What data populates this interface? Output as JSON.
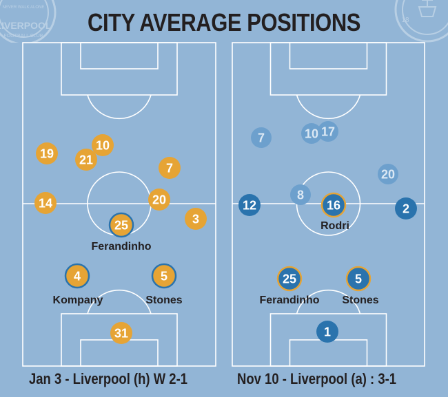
{
  "title": "CITY AVERAGE POSITIONS",
  "crests": {
    "left": {
      "icon": "liverpool-crest-icon",
      "text": "LIVERPOOL",
      "subtext": "FOOTBALL CLUB",
      "motto": "NEVER WALK ALONE"
    },
    "right": {
      "icon": "manchester-city-crest-icon",
      "text": "18"
    }
  },
  "colors": {
    "background": "#92b5d6",
    "pitch_line": "#ffffff",
    "orange": "#e6a435",
    "blue_dark": "#2a73ad",
    "blue_light": "#6da0cd",
    "text": "#231f20"
  },
  "pitches": [
    {
      "caption": "Jan 3 - Liverpool (h) W 2-1",
      "players": [
        {
          "number": "19",
          "style": "orange",
          "label": ""
        },
        {
          "number": "10",
          "style": "orange",
          "label": ""
        },
        {
          "number": "21",
          "style": "orange",
          "label": ""
        },
        {
          "number": "7",
          "style": "orange",
          "label": ""
        },
        {
          "number": "14",
          "style": "orange",
          "label": ""
        },
        {
          "number": "20",
          "style": "orange",
          "label": ""
        },
        {
          "number": "3",
          "style": "orange",
          "label": ""
        },
        {
          "number": "25",
          "style": "orange-ring",
          "label": "Ferandinho"
        },
        {
          "number": "4",
          "style": "orange-ring",
          "label": "Kompany"
        },
        {
          "number": "5",
          "style": "orange-ring",
          "label": "Stones"
        },
        {
          "number": "31",
          "style": "orange",
          "label": ""
        }
      ]
    },
    {
      "caption": "Nov 10 - Liverpool (a) : 3-1",
      "players": [
        {
          "number": "7",
          "style": "light",
          "label": ""
        },
        {
          "number": "10",
          "style": "light",
          "label": ""
        },
        {
          "number": "17",
          "style": "light",
          "label": ""
        },
        {
          "number": "20",
          "style": "light",
          "label": ""
        },
        {
          "number": "8",
          "style": "light",
          "label": ""
        },
        {
          "number": "12",
          "style": "dark",
          "label": ""
        },
        {
          "number": "16",
          "style": "dark-ring",
          "label": "Rodri"
        },
        {
          "number": "2",
          "style": "dark",
          "label": ""
        },
        {
          "number": "25",
          "style": "dark-ring",
          "label": "Ferandinho"
        },
        {
          "number": "5",
          "style": "dark-ring",
          "label": "Stones"
        },
        {
          "number": "1",
          "style": "dark",
          "label": ""
        }
      ]
    }
  ]
}
